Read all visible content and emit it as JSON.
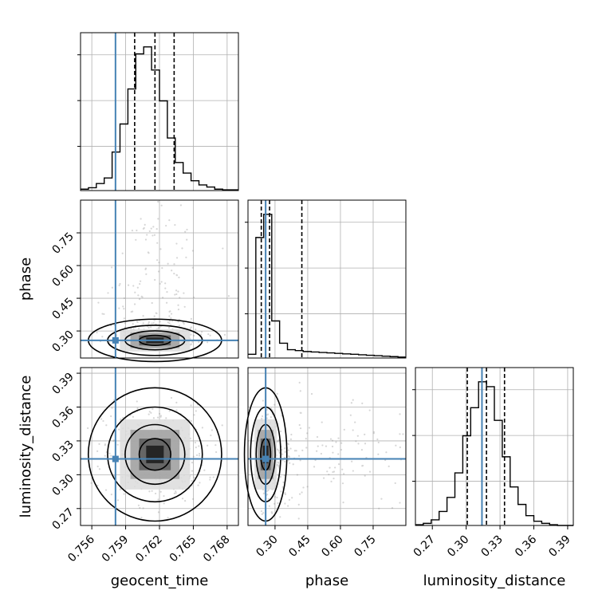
{
  "chart_data": {
    "type": "corner",
    "parameters": [
      "geocent_time",
      "phase",
      "luminosity_distance"
    ],
    "truths": {
      "geocent_time": 0.7581,
      "phase": 0.257,
      "luminosity_distance": 0.314
    },
    "quantiles": {
      "geocent_time": [
        0.7598,
        0.7616,
        0.7633
      ],
      "phase": [
        0.237,
        0.275,
        0.423
      ],
      "luminosity_distance": [
        0.301,
        0.318,
        0.334
      ]
    },
    "ranges": {
      "geocent_time": [
        0.755,
        0.769
      ],
      "phase": [
        0.176,
        0.9
      ],
      "luminosity_distance": [
        0.255,
        0.395
      ]
    },
    "ticks": {
      "geocent_time": [
        "0.756",
        "0.759",
        "0.762",
        "0.765",
        "0.768"
      ],
      "phase": [
        "0.30",
        "0.45",
        "0.60",
        "0.75"
      ],
      "luminosity_distance": [
        "0.27",
        "0.30",
        "0.33",
        "0.36",
        "0.39"
      ]
    },
    "tick_values": {
      "geocent_time": [
        0.756,
        0.759,
        0.762,
        0.765,
        0.768
      ],
      "phase": [
        0.3,
        0.45,
        0.6,
        0.75
      ],
      "luminosity_distance": [
        0.27,
        0.3,
        0.33,
        0.36,
        0.39
      ]
    },
    "histograms": {
      "geocent_time": {
        "bin_edges": [
          0.755,
          0.7557,
          0.7564,
          0.7571,
          0.7578,
          0.7585,
          0.7592,
          0.7599,
          0.7606,
          0.7613,
          0.762,
          0.7627,
          0.7634,
          0.7641,
          0.7648,
          0.7655,
          0.7662,
          0.7669,
          0.7676,
          0.7683,
          0.769
        ],
        "counts": [
          2,
          4,
          10,
          18,
          55,
          95,
          145,
          195,
          205,
          172,
          128,
          75,
          40,
          25,
          14,
          8,
          5,
          2,
          1,
          1
        ]
      },
      "phase": {
        "bin_edges": [
          0.176,
          0.212,
          0.248,
          0.285,
          0.321,
          0.357,
          0.393,
          0.429,
          0.466,
          0.502,
          0.538,
          0.574,
          0.61,
          0.647,
          0.683,
          0.719,
          0.755,
          0.791,
          0.828,
          0.864,
          0.9
        ],
        "counts": [
          8,
          260,
          310,
          80,
          32,
          18,
          16,
          14,
          13,
          12,
          11,
          10,
          9,
          8,
          7,
          6,
          5,
          4,
          3,
          2
        ]
      },
      "luminosity_distance": {
        "bin_edges": [
          0.255,
          0.262,
          0.269,
          0.276,
          0.283,
          0.29,
          0.297,
          0.304,
          0.311,
          0.318,
          0.325,
          0.332,
          0.339,
          0.346,
          0.353,
          0.36,
          0.367,
          0.374,
          0.381,
          0.388,
          0.395
        ],
        "counts": [
          1,
          3,
          8,
          20,
          40,
          75,
          128,
          168,
          205,
          198,
          150,
          98,
          55,
          30,
          14,
          6,
          3,
          1,
          0,
          0
        ]
      }
    },
    "panels_2d": [
      {
        "x": "geocent_time",
        "y": "phase"
      },
      {
        "x": "geocent_time",
        "y": "luminosity_distance"
      },
      {
        "x": "phase",
        "y": "luminosity_distance"
      }
    ],
    "colors": {
      "truth": "#4682b4",
      "hist": "#000000",
      "grid": "#b0b0b0",
      "points": "#8c8c8c"
    }
  }
}
